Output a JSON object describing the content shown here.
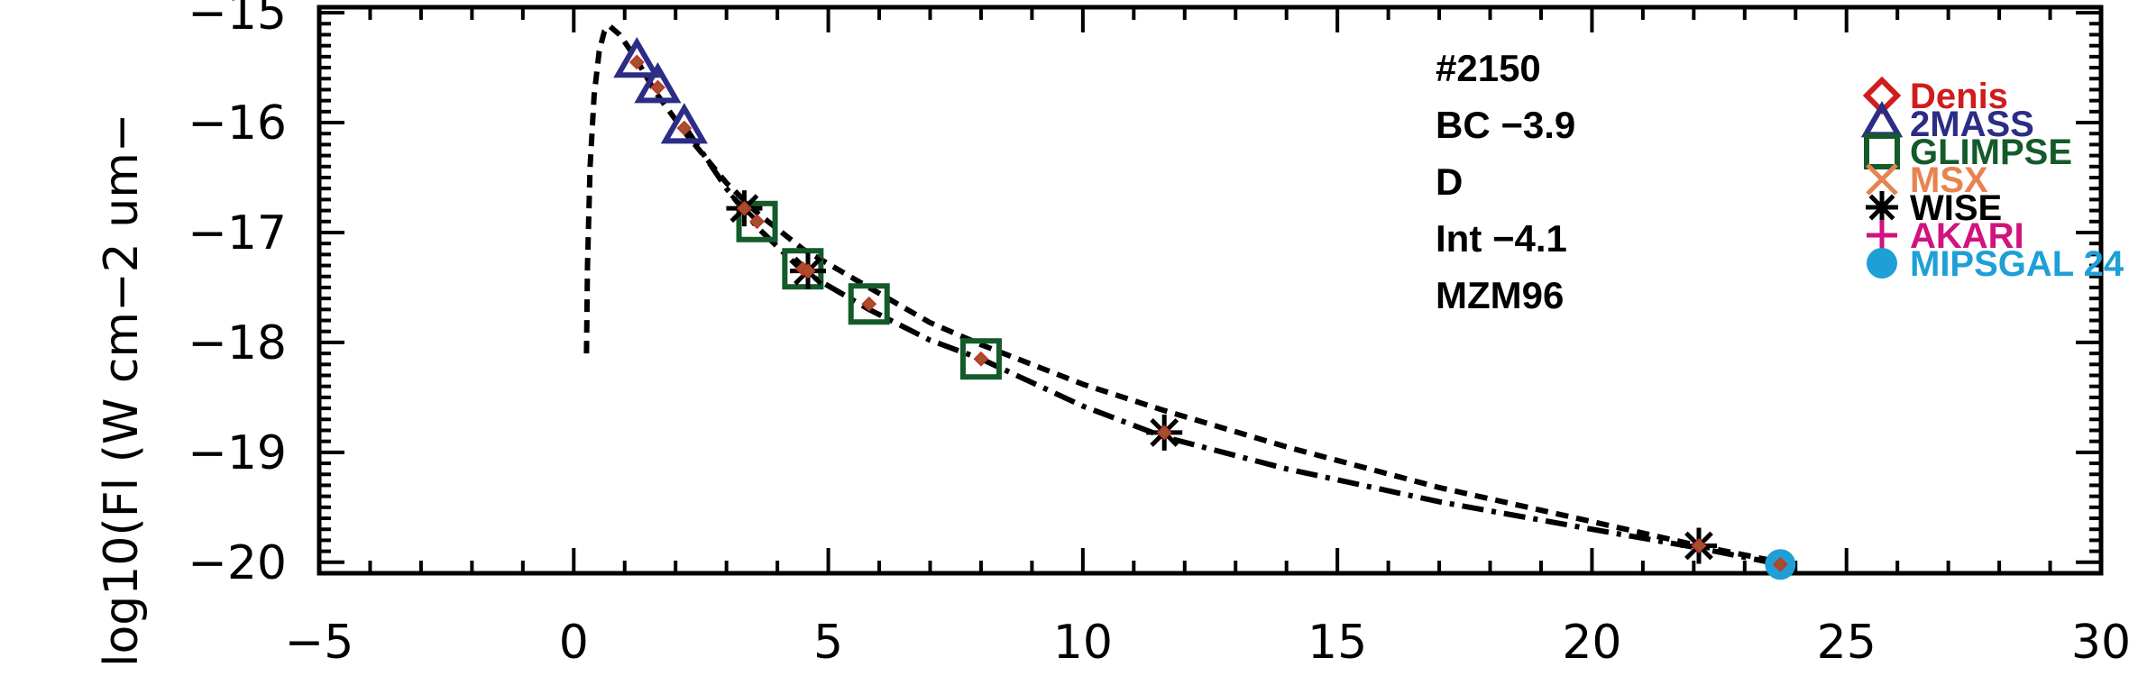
{
  "chart_data": {
    "type": "scatter",
    "title": "",
    "xlabel": "",
    "ylabel": "log10(Fl (W cm−2 um−",
    "xlim": [
      -5,
      30
    ],
    "ylim": [
      -20.1,
      -14.95
    ],
    "x_ticks": [
      "−5",
      "0",
      "5",
      "10",
      "15",
      "20",
      "25",
      "30"
    ],
    "y_ticks": [
      "−15",
      "−16",
      "−17",
      "−18",
      "−19",
      "−20"
    ],
    "annotations": [
      "#2150",
      "BC −3.9",
      "D",
      "Int −4.1",
      "MZM96"
    ],
    "legend": [
      {
        "name": "Denis",
        "marker": "diamond",
        "color": "#d01c1c"
      },
      {
        "name": "2MASS",
        "marker": "triangle",
        "color": "#2b2d86"
      },
      {
        "name": "GLIMPSE",
        "marker": "square",
        "color": "#145a2b"
      },
      {
        "name": "MSX",
        "marker": "x",
        "color": "#e8834f"
      },
      {
        "name": "WISE",
        "marker": "asterisk",
        "color": "#000000"
      },
      {
        "name": "AKARI",
        "marker": "plus",
        "color": "#d2127f"
      },
      {
        "name": "MIPSGAL 24",
        "marker": "circle",
        "color": "#1e9fd6"
      }
    ],
    "series": [
      {
        "name": "2MASS",
        "marker": "triangle",
        "x": [
          1.24,
          1.65,
          2.17
        ],
        "y": [
          -15.45,
          -15.68,
          -16.05
        ]
      },
      {
        "name": "GLIMPSE",
        "marker": "square",
        "x": [
          3.6,
          4.5,
          5.8,
          8.0
        ],
        "y": [
          -16.9,
          -17.33,
          -17.65,
          -18.15
        ]
      },
      {
        "name": "WISE",
        "marker": "asterisk",
        "x": [
          3.35,
          4.6,
          11.6,
          22.1
        ],
        "y": [
          -16.78,
          -17.35,
          -18.82,
          -19.85
        ]
      },
      {
        "name": "MIPSGAL 24",
        "marker": "circle",
        "x": [
          23.7
        ],
        "y": [
          -20.02
        ]
      }
    ],
    "model_curves": [
      {
        "style": "dashed",
        "x": [
          0.25,
          0.27,
          0.32,
          0.4,
          0.5,
          0.6,
          0.7,
          0.9,
          1.2,
          1.6,
          2.2,
          3.0,
          3.6,
          4.5,
          5.8,
          7.0,
          8.0,
          10.0,
          11.6,
          14.0,
          17.0,
          20.0,
          22.1,
          23.7
        ],
        "y": [
          -18.1,
          -17.3,
          -16.4,
          -15.75,
          -15.35,
          -15.17,
          -15.12,
          -15.2,
          -15.4,
          -15.72,
          -16.1,
          -16.55,
          -16.82,
          -17.15,
          -17.5,
          -17.82,
          -18.02,
          -18.38,
          -18.62,
          -18.95,
          -19.32,
          -19.63,
          -19.85,
          -20.0
        ]
      },
      {
        "style": "dash-dot",
        "x": [
          2.2,
          3.0,
          3.6,
          4.5,
          5.8,
          7.0,
          8.0,
          10.0,
          11.6,
          14.0,
          17.0,
          20.0,
          22.1,
          23.7
        ],
        "y": [
          -16.05,
          -16.6,
          -16.95,
          -17.35,
          -17.7,
          -17.98,
          -18.15,
          -18.58,
          -18.86,
          -19.15,
          -19.45,
          -19.7,
          -19.87,
          -20.02
        ]
      }
    ],
    "derived_points": {
      "name": "Denis",
      "marker": "diamond-small",
      "x": [
        1.24,
        1.65,
        2.17,
        3.35,
        3.6,
        4.5,
        4.6,
        5.8,
        8.0,
        11.6,
        22.1,
        23.7
      ],
      "y": [
        -15.45,
        -15.68,
        -16.05,
        -16.78,
        -16.9,
        -17.33,
        -17.35,
        -17.65,
        -18.15,
        -18.82,
        -19.85,
        -20.02
      ]
    },
    "grid": false,
    "legend_position": "top-right"
  }
}
